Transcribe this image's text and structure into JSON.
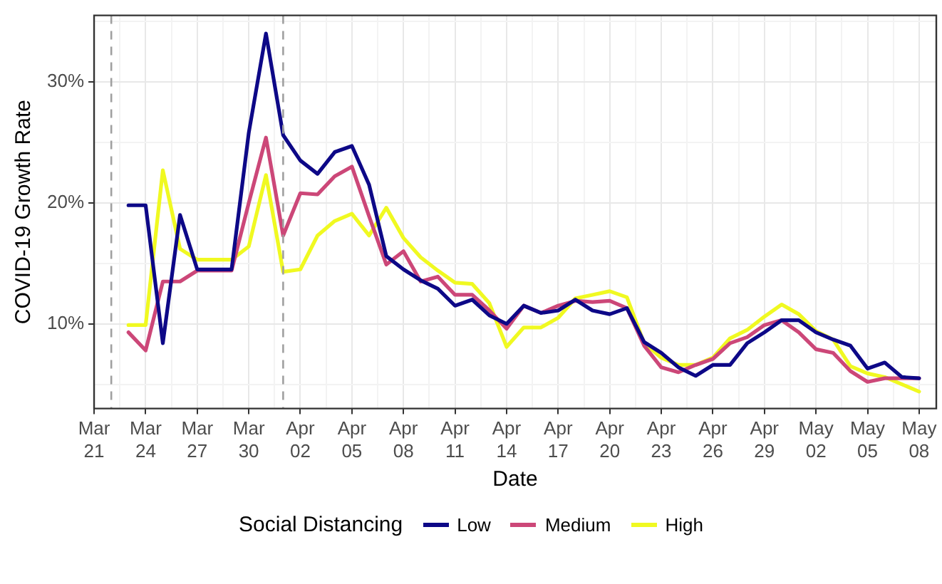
{
  "chart_data": {
    "type": "line",
    "xlabel": "Date",
    "ylabel": "COVID-19 Growth Rate",
    "legend_title": "Social Distancing",
    "legend": "bottom",
    "grid": true,
    "line_style": "solid",
    "marker": "none",
    "x": [
      "--03-23",
      "--03-24",
      "--03-25",
      "--03-26",
      "--03-27",
      "--03-28",
      "--03-29",
      "--03-30",
      "--03-31",
      "--04-01",
      "--04-02",
      "--04-03",
      "--04-04",
      "--04-05",
      "--04-06",
      "--04-07",
      "--04-08",
      "--04-09",
      "--04-10",
      "--04-11",
      "--04-12",
      "--04-13",
      "--04-14",
      "--04-15",
      "--04-16",
      "--04-17",
      "--04-18",
      "--04-19",
      "--04-20",
      "--04-21",
      "--04-22",
      "--04-23",
      "--04-24",
      "--04-25",
      "--04-26",
      "--04-27",
      "--04-28",
      "--04-29",
      "--04-30",
      "--05-01",
      "--05-02",
      "--05-03",
      "--05-04",
      "--05-05",
      "--05-06",
      "--05-07",
      "--05-08"
    ],
    "series": [
      {
        "name": "Low",
        "color": "#0d0887",
        "values": [
          19.8,
          19.8,
          8.4,
          19.0,
          14.5,
          14.5,
          14.5,
          25.8,
          34.0,
          25.6,
          23.5,
          22.4,
          24.2,
          24.7,
          21.5,
          15.6,
          14.5,
          13.6,
          12.9,
          11.5,
          12.0,
          10.7,
          10.0,
          11.5,
          10.9,
          11.1,
          12.0,
          11.1,
          10.8,
          11.3,
          8.5,
          7.6,
          6.4,
          5.7,
          6.6,
          6.6,
          8.4,
          9.3,
          10.3,
          10.3,
          9.3,
          8.7,
          8.2,
          6.3,
          6.8,
          5.6,
          5.5
        ]
      },
      {
        "name": "Medium",
        "color": "#cc4778",
        "values": [
          9.3,
          7.8,
          13.5,
          13.5,
          14.4,
          14.4,
          14.4,
          20.0,
          25.4,
          17.3,
          20.8,
          20.7,
          22.2,
          23.0,
          18.9,
          14.9,
          16.0,
          13.5,
          13.9,
          12.4,
          12.4,
          11.1,
          9.6,
          11.5,
          10.9,
          11.5,
          11.9,
          11.8,
          11.9,
          11.3,
          8.2,
          6.4,
          6.0,
          6.6,
          7.1,
          8.4,
          8.9,
          9.9,
          10.3,
          9.3,
          7.9,
          7.6,
          6.1,
          5.2,
          5.5,
          5.5,
          5.5
        ]
      },
      {
        "name": "High",
        "color": "#f0f921",
        "values": [
          9.9,
          9.9,
          22.7,
          16.2,
          15.3,
          15.3,
          15.3,
          16.4,
          22.3,
          14.3,
          14.5,
          17.3,
          18.5,
          19.1,
          17.3,
          19.6,
          17.1,
          15.5,
          14.4,
          13.4,
          13.3,
          11.7,
          8.1,
          9.7,
          9.7,
          10.5,
          12.1,
          12.4,
          12.7,
          12.2,
          8.4,
          7.2,
          6.6,
          6.6,
          7.2,
          8.8,
          9.5,
          10.6,
          11.6,
          10.8,
          9.4,
          8.7,
          6.5,
          5.9,
          5.6,
          5.0,
          4.4
        ]
      }
    ],
    "xlim": [
      "--03-21",
      "--05-09"
    ],
    "xticks": [
      {
        "value": "--03-21",
        "label": "Mar 21"
      },
      {
        "value": "--03-22T12:00",
        "label": null
      },
      {
        "value": "--03-24",
        "label": "Mar 24"
      },
      {
        "value": "--03-25T12:00",
        "label": null
      },
      {
        "value": "--03-27",
        "label": "Mar 27"
      },
      {
        "value": "--03-28T12:00",
        "label": null
      },
      {
        "value": "--03-30",
        "label": "Mar 30"
      },
      {
        "value": "--03-31T12:00",
        "label": null
      },
      {
        "value": "--04-02",
        "label": "Apr 02"
      },
      {
        "value": "--04-03T12:00",
        "label": null
      },
      {
        "value": "--04-05",
        "label": "Apr 05"
      },
      {
        "value": "--04-06T12:00",
        "label": null
      },
      {
        "value": "--04-08",
        "label": "Apr 08"
      },
      {
        "value": "--04-09T12:00",
        "label": null
      },
      {
        "value": "--04-11",
        "label": "Apr 11"
      },
      {
        "value": "--04-12T12:00",
        "label": null
      },
      {
        "value": "--04-14",
        "label": "Apr 14"
      },
      {
        "value": "--04-15T12:00",
        "label": null
      },
      {
        "value": "--04-17",
        "label": "Apr 17"
      },
      {
        "value": "--04-18T12:00",
        "label": null
      },
      {
        "value": "--04-20",
        "label": "Apr 20"
      },
      {
        "value": "--04-21T12:00",
        "label": null
      },
      {
        "value": "--04-23",
        "label": "Apr 23"
      },
      {
        "value": "--04-24T12:00",
        "label": null
      },
      {
        "value": "--04-26",
        "label": "Apr 26"
      },
      {
        "value": "--04-27T12:00",
        "label": null
      },
      {
        "value": "--04-29",
        "label": "Apr 29"
      },
      {
        "value": "--04-30T12:00",
        "label": null
      },
      {
        "value": "--05-02",
        "label": "May 02"
      },
      {
        "value": "--05-03T12:00",
        "label": null
      },
      {
        "value": "--05-05",
        "label": "May 05"
      },
      {
        "value": "--05-06T12:00",
        "label": null
      },
      {
        "value": "--05-08",
        "label": "May 08"
      }
    ],
    "ylim": [
      3.0,
      35.5
    ],
    "yticks": [
      {
        "value": 5,
        "label": null
      },
      {
        "value": 10,
        "label": "10%"
      },
      {
        "value": 15,
        "label": null
      },
      {
        "value": 20,
        "label": "20%"
      },
      {
        "value": 25,
        "label": null
      },
      {
        "value": 30,
        "label": "30%"
      },
      {
        "value": 35,
        "label": null
      }
    ],
    "ref_lines": [
      {
        "axis": "x",
        "value": "--03-22",
        "label": null,
        "color": "#a0a0a0",
        "line_style": "dashed"
      },
      {
        "axis": "x",
        "value": "--04-01",
        "label": null,
        "color": "#a0a0a0",
        "line_style": "dashed"
      }
    ]
  }
}
